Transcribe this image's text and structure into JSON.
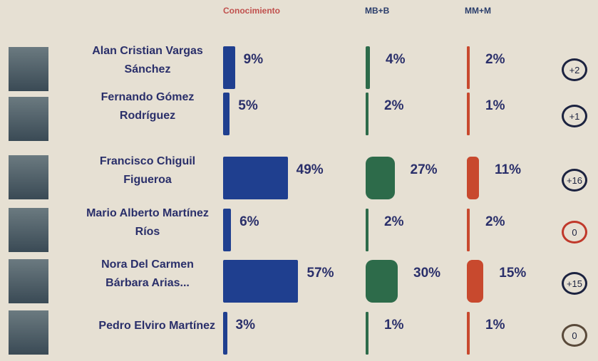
{
  "chart_data": {
    "type": "bar",
    "categories": [
      "Alan Cristian Vargas Sánchez",
      "Fernando Gómez Rodríguez",
      "Francisco Chiguil Figueroa",
      "Mario Alberto Martínez Ríos",
      "Nora Del Carmen Bárbara Arias...",
      "Pedro Elviro Martínez"
    ],
    "series": [
      {
        "name": "Conocimiento",
        "color": "#1f3f8f",
        "values": [
          9,
          5,
          49,
          6,
          57,
          3
        ],
        "value_labels": [
          "9%",
          "5%",
          "49%",
          "6%",
          "57%",
          "3%"
        ]
      },
      {
        "name": "MB+B",
        "color": "#2d6b4a",
        "values": [
          4,
          2,
          27,
          2,
          30,
          1
        ],
        "value_labels": [
          "4%",
          "2%",
          "27%",
          "2%",
          "30%",
          "1%"
        ]
      },
      {
        "name": "MM+M",
        "color": "#c8492e",
        "values": [
          2,
          1,
          11,
          2,
          15,
          1
        ],
        "value_labels": [
          "2%",
          "1%",
          "11%",
          "2%",
          "15%",
          "1%"
        ]
      }
    ],
    "differences": {
      "values": [
        2,
        1,
        16,
        0,
        15,
        0
      ],
      "value_labels": [
        "+2",
        "+1",
        "+16",
        "0",
        "+15",
        "0"
      ],
      "colors": [
        "#1c2340",
        "#1c2340",
        "#1c2340",
        "#c0392b",
        "#1c2340",
        "#5a4a3a"
      ]
    }
  }
}
